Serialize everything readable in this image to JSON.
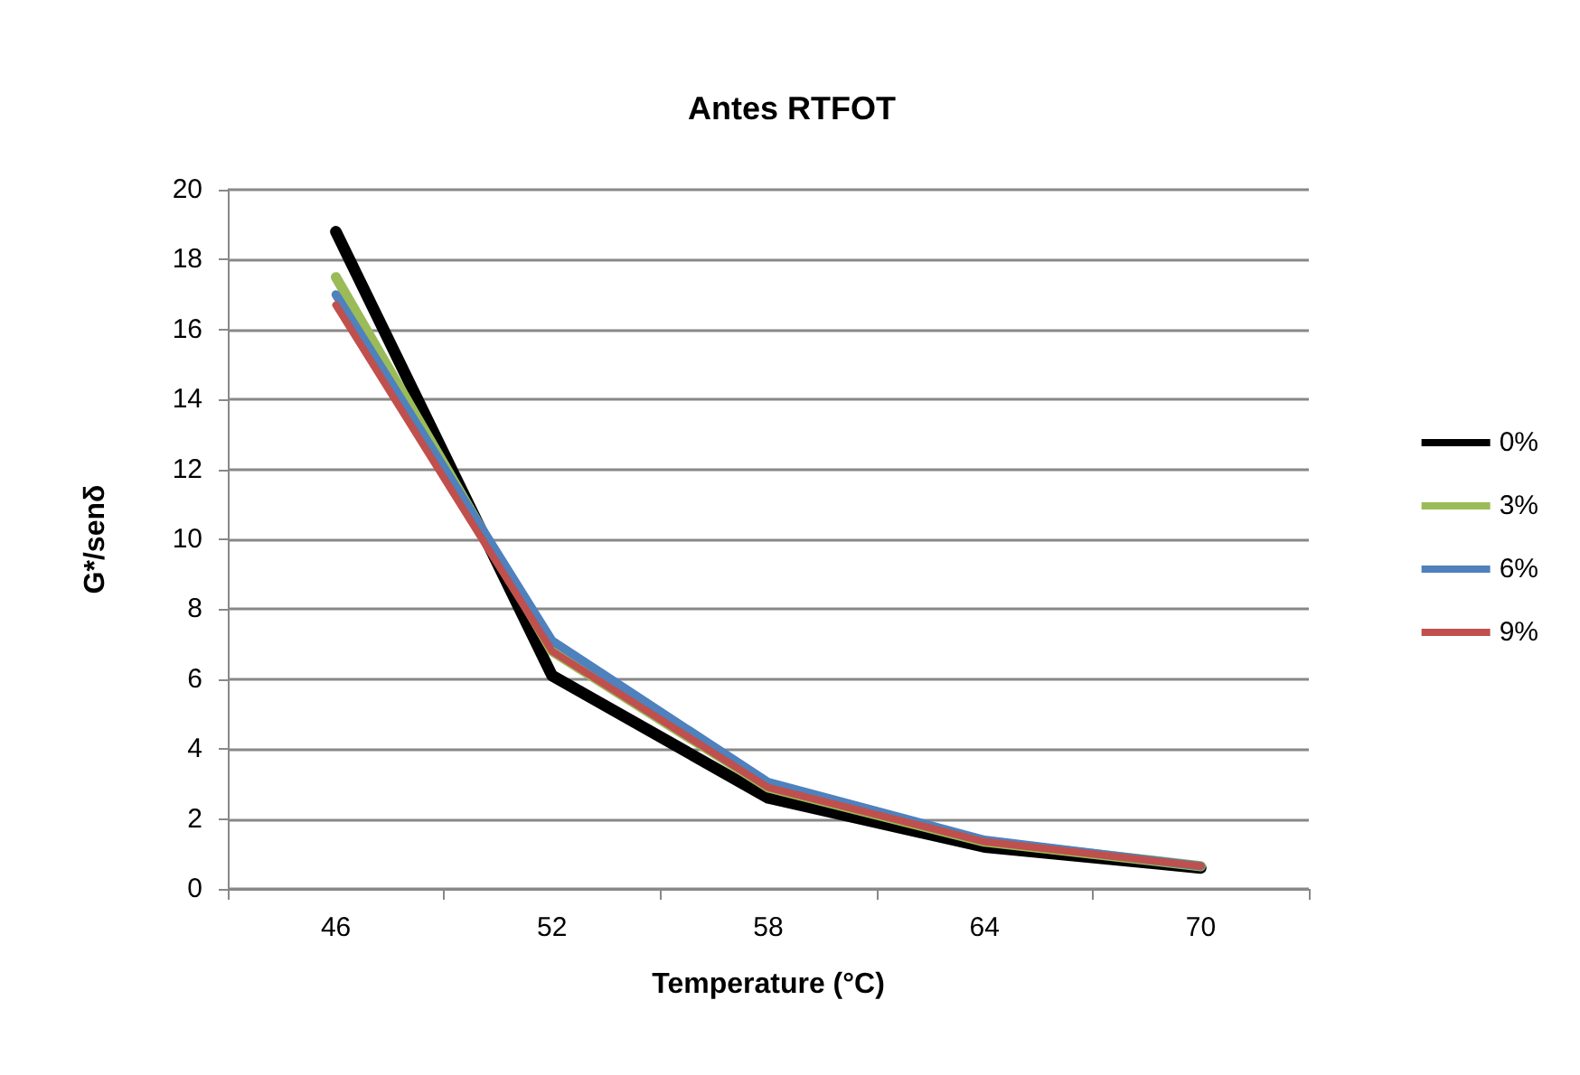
{
  "chart_data": {
    "type": "line",
    "title": "Antes RTFOT",
    "xlabel": "Temperature (°C)",
    "ylabel": "G*/senδ",
    "categories": [
      "46",
      "52",
      "58",
      "64",
      "70"
    ],
    "series": [
      {
        "name": "0%",
        "color": "#000000",
        "values": [
          18.8,
          6.1,
          2.6,
          1.2,
          0.6
        ]
      },
      {
        "name": "3%",
        "color": "#9bbb59",
        "values": [
          17.5,
          6.8,
          2.9,
          1.35,
          0.65
        ]
      },
      {
        "name": "6%",
        "color": "#4f81bd",
        "values": [
          17.0,
          7.1,
          3.05,
          1.4,
          0.65
        ]
      },
      {
        "name": "9%",
        "color": "#c0504d",
        "values": [
          16.7,
          6.8,
          2.9,
          1.35,
          0.65
        ]
      }
    ],
    "ylim": [
      0,
      20
    ],
    "yticks": [
      0,
      2,
      4,
      6,
      8,
      10,
      12,
      14,
      16,
      18,
      20
    ],
    "grid": "y",
    "legend": "right",
    "marker": "none",
    "line_style": "solid"
  }
}
